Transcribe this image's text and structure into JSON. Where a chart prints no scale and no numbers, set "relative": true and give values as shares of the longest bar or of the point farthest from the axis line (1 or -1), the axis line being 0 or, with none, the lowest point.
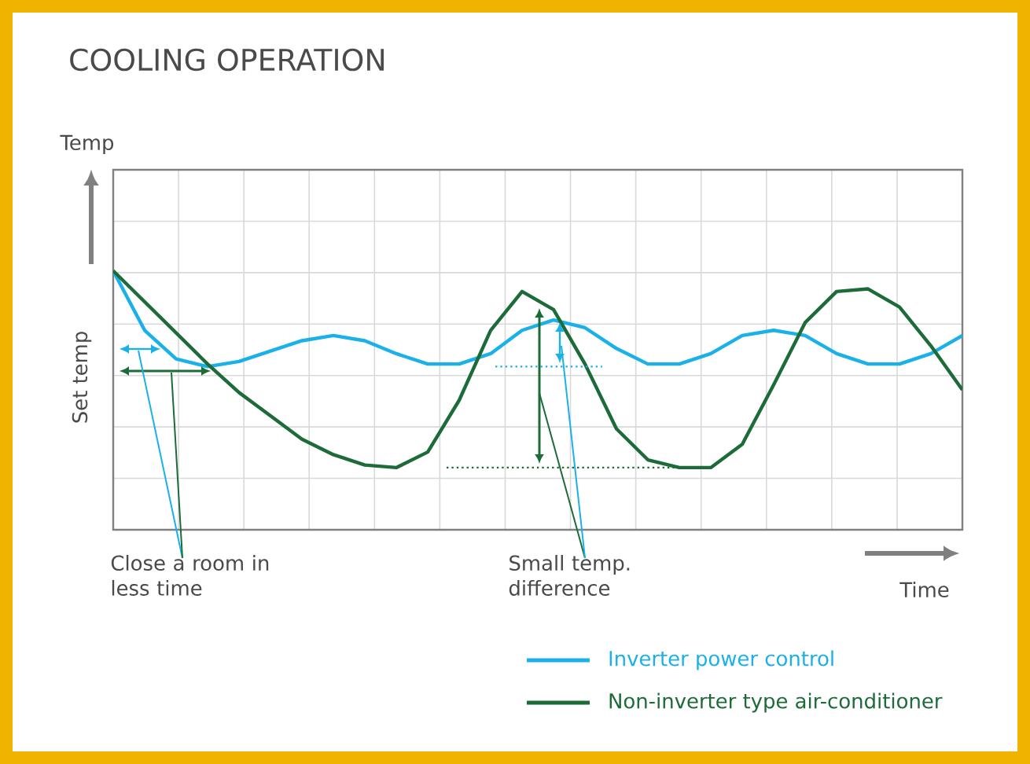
{
  "chart_data": {
    "type": "line",
    "title": "COOLING OPERATION",
    "xlabel": "Time",
    "relative": true,
    "grid": true,
    "legend": "bottom right",
    "categories": [
      null,
      null,
      null,
      null,
      null,
      null,
      null,
      null,
      null,
      null,
      null,
      null,
      null,
      null,
      null,
      null,
      null,
      null,
      null,
      null,
      null,
      null,
      null,
      null,
      null,
      null,
      null,
      null
    ],
    "series": [
      {
        "name": "Inverter power control",
        "color": "#1ab0e8",
        "values": [
          1.0,
          0.77,
          0.66,
          0.63,
          0.65,
          0.69,
          0.73,
          0.75,
          0.73,
          0.68,
          0.64,
          0.64,
          0.68,
          0.77,
          0.81,
          0.78,
          0.7,
          0.64,
          0.64,
          0.68,
          0.75,
          0.77,
          0.75,
          0.68,
          0.64,
          0.64,
          0.68,
          0.75
        ]
      },
      {
        "name": "Non-inverter type air-conditioner",
        "color": "#1e6b3a",
        "values": [
          1.0,
          0.88,
          0.76,
          0.64,
          0.53,
          0.44,
          0.35,
          0.29,
          0.25,
          0.24,
          0.3,
          0.5,
          0.77,
          0.92,
          0.85,
          0.64,
          0.39,
          0.27,
          0.24,
          0.24,
          0.33,
          0.56,
          0.8,
          0.92,
          0.93,
          0.86,
          0.71,
          0.54
        ]
      }
    ],
    "ref_lines": [
      {
        "axis": "y",
        "value": 0.63,
        "color": "#1ab0e8",
        "line_style": "dotted"
      },
      {
        "axis": "y",
        "value": 0.24,
        "color": "#1e6b3a",
        "line_style": "dotted"
      }
    ],
    "annotations": [
      "Set temp",
      "Close a room in less time",
      "Small temp. difference",
      "Temp"
    ]
  }
}
